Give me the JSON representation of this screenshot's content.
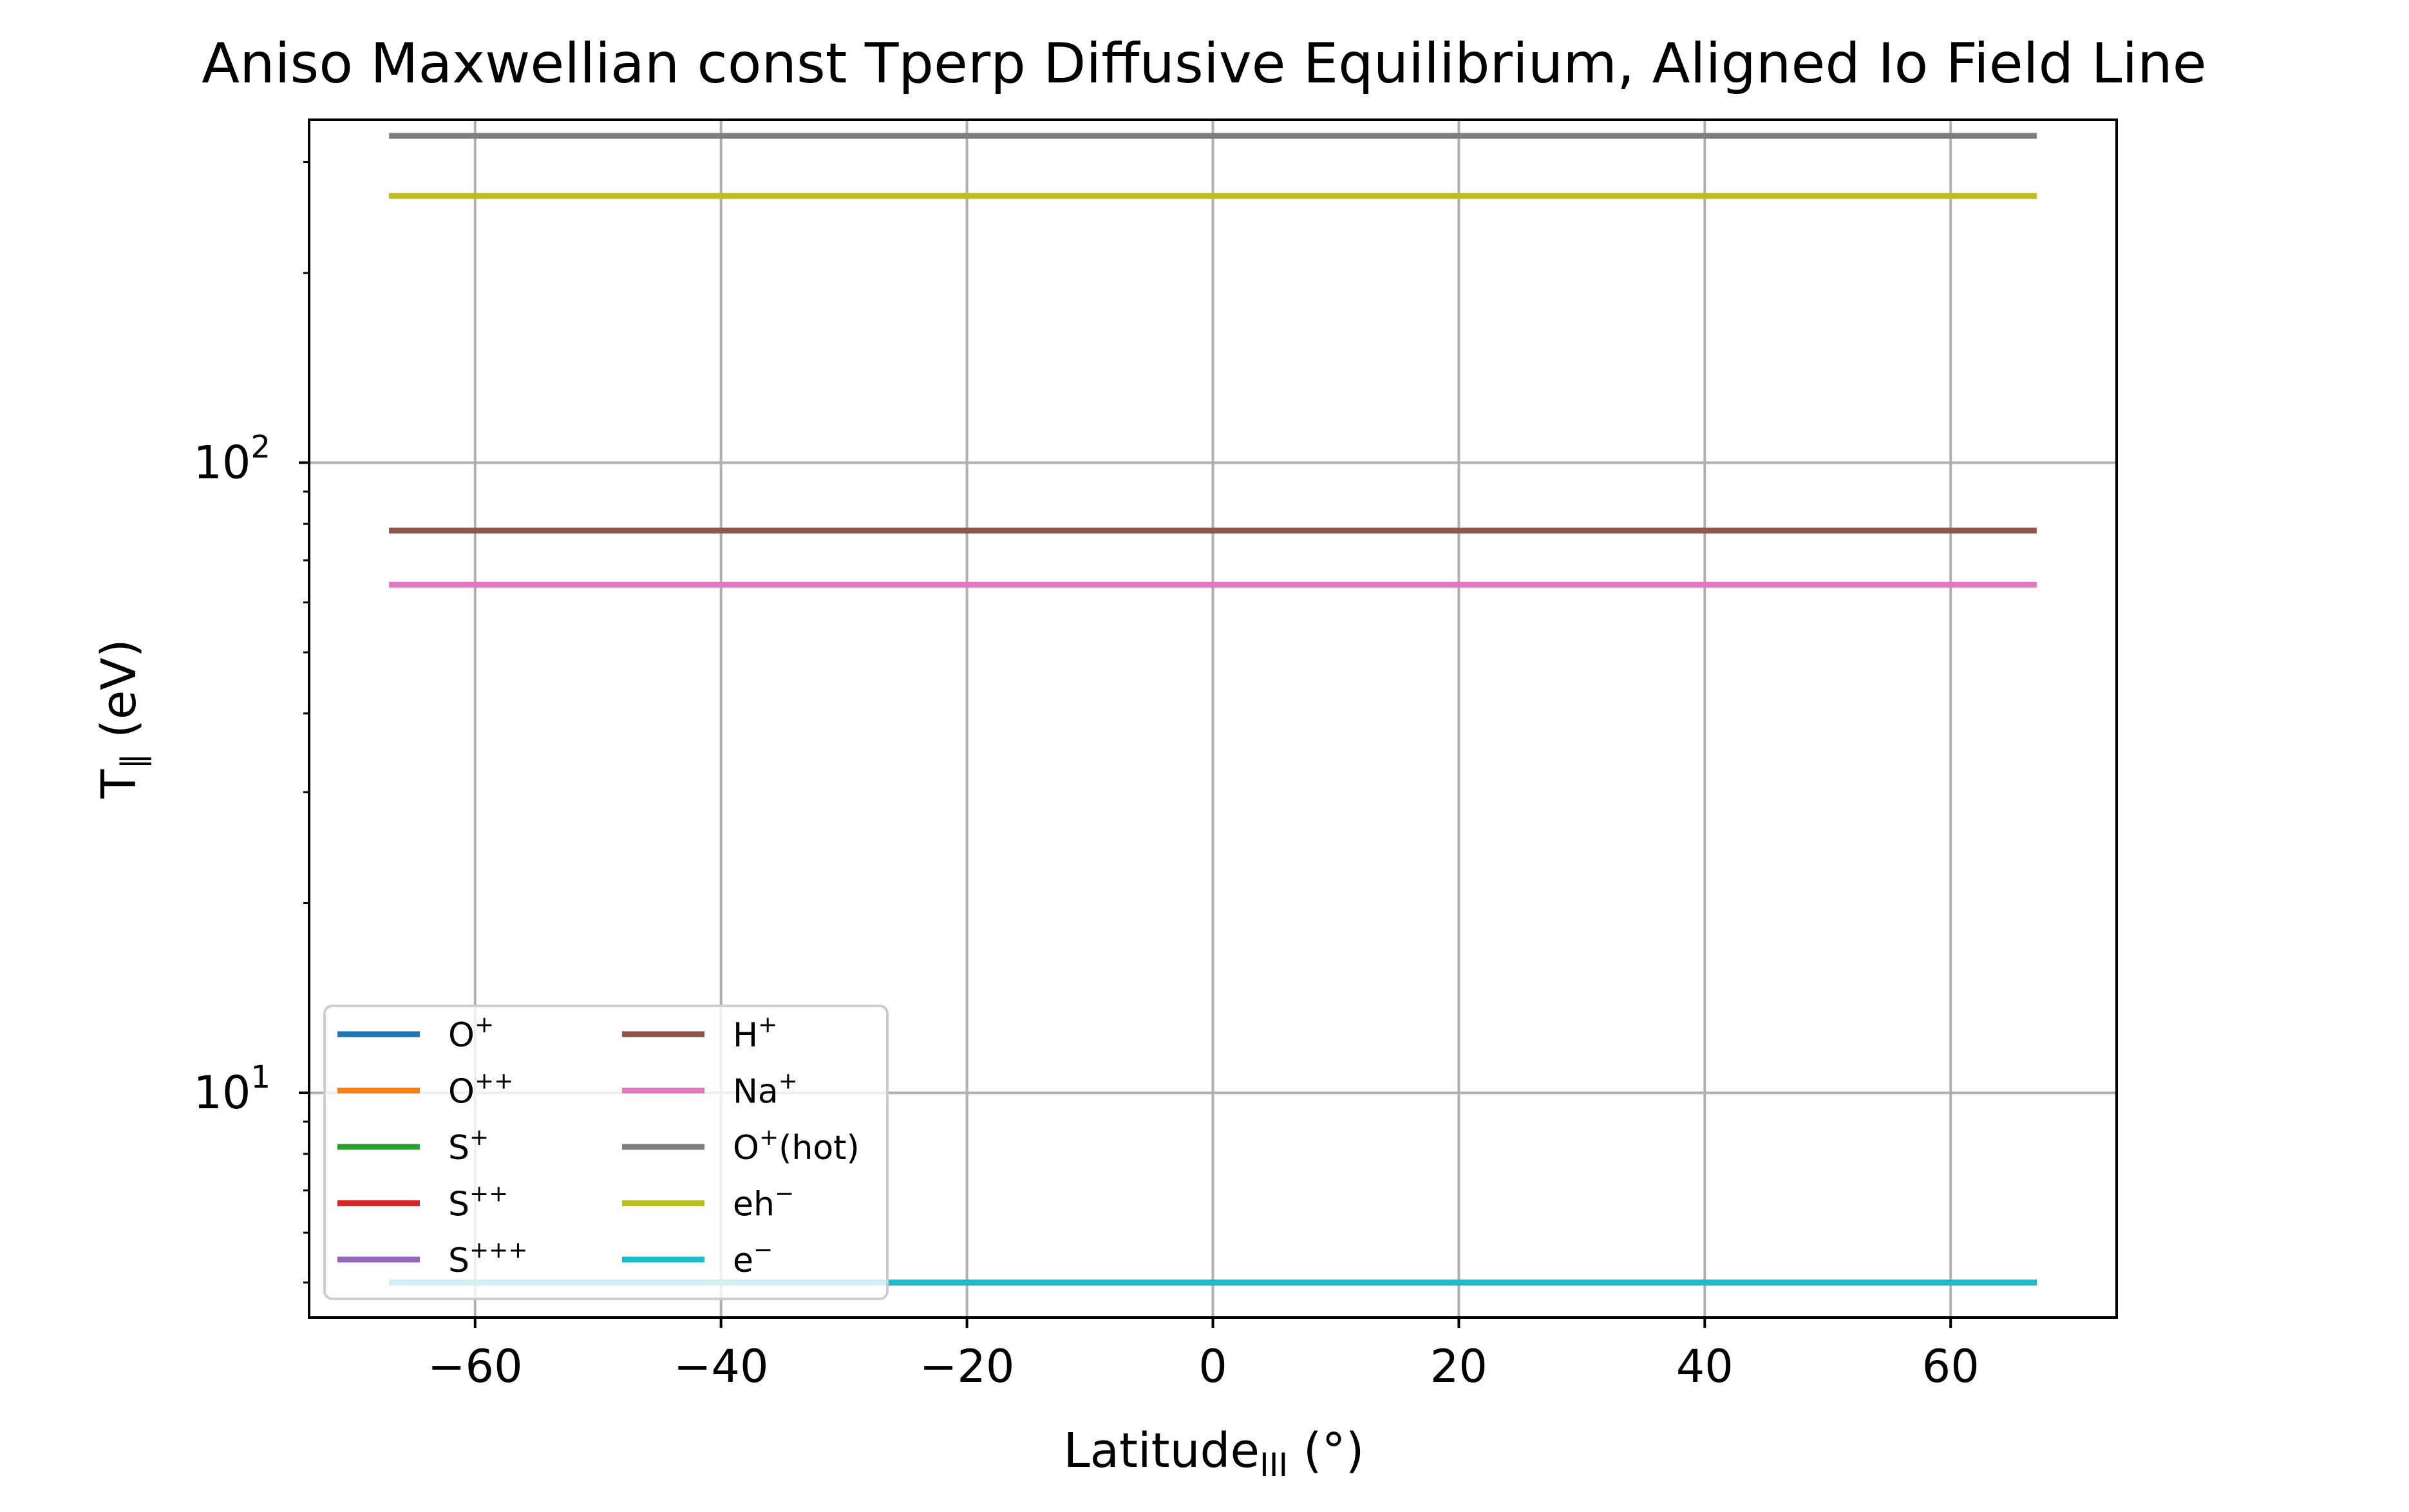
{
  "chart_data": {
    "type": "line",
    "title": "Aniso Maxwellian const Tperp Diffusive Equilibrium, Aligned Io Field Line",
    "xlabel": "Latitude",
    "xlabel_sub": "III",
    "xlabel_unit": " (°)",
    "ylabel": "T",
    "ylabel_sub": "∥",
    "ylabel_unit": " (eV)",
    "xlim": [
      -73.5,
      73.5
    ],
    "ylim": [
      4.4,
      350
    ],
    "yscale": "log",
    "grid": true,
    "legend_position": "lower-left",
    "legend_columns": 2,
    "x_ticks": [
      -60,
      -40,
      -20,
      0,
      20,
      40,
      60
    ],
    "x_tick_labels": [
      "−60",
      "−40",
      "−20",
      "0",
      "20",
      "40",
      "60"
    ],
    "y_major_ticks": [
      {
        "value": 10,
        "base": "10",
        "exp": "1"
      },
      {
        "value": 100,
        "base": "10",
        "exp": "2"
      }
    ],
    "y_minor_ticks": [
      5,
      6,
      7,
      8,
      9,
      20,
      30,
      40,
      50,
      60,
      70,
      80,
      90,
      200,
      300
    ],
    "x_range": [
      -67,
      67
    ],
    "series": [
      {
        "name": "O⁺",
        "base": "O",
        "sup": "+",
        "color": "#1f77b4",
        "value": 5.0
      },
      {
        "name": "O⁺⁺",
        "base": "O",
        "sup": "++",
        "color": "#ff7f0e",
        "value": 5.0
      },
      {
        "name": "S⁺",
        "base": "S",
        "sup": "+",
        "color": "#2ca02c",
        "value": 5.0
      },
      {
        "name": "S⁺⁺",
        "base": "S",
        "sup": "++",
        "color": "#d62728",
        "value": 5.0
      },
      {
        "name": "S⁺⁺⁺",
        "base": "S",
        "sup": "+++",
        "color": "#9467bd",
        "value": 5.0
      },
      {
        "name": "H⁺",
        "base": "H",
        "sup": "+",
        "color": "#8c564b",
        "value": 78
      },
      {
        "name": "Na⁺",
        "base": "Na",
        "sup": "+",
        "color": "#e377c2",
        "value": 64
      },
      {
        "name": "O⁺(hot)",
        "base": "O",
        "sup": "+",
        "suffix": "(hot)",
        "color": "#7f7f7f",
        "value": 330
      },
      {
        "name": "eh⁻",
        "base": "eh",
        "sup": "−",
        "color": "#bcbd22",
        "value": 265
      },
      {
        "name": "e⁻",
        "base": "e",
        "sup": "−",
        "color": "#17becf",
        "value": 5.0
      }
    ]
  }
}
